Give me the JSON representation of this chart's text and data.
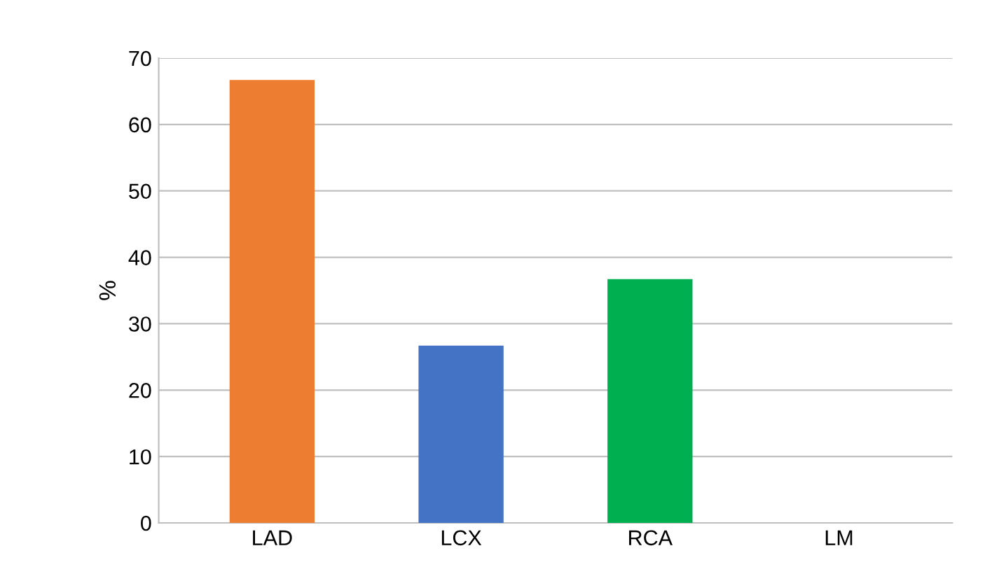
{
  "chart_data": {
    "type": "bar",
    "ylabel": "%",
    "categories": [
      "LAD",
      "LCX",
      "RCA",
      "LM"
    ],
    "values": [
      66.7,
      26.7,
      36.7,
      0
    ],
    "colors": [
      "#ed7d31",
      "#4472c4",
      "#00b050",
      "#4472c4"
    ],
    "ylim": [
      0,
      70
    ],
    "yticks": [
      0,
      10,
      20,
      30,
      40,
      50,
      60,
      70
    ],
    "grid": "y"
  }
}
